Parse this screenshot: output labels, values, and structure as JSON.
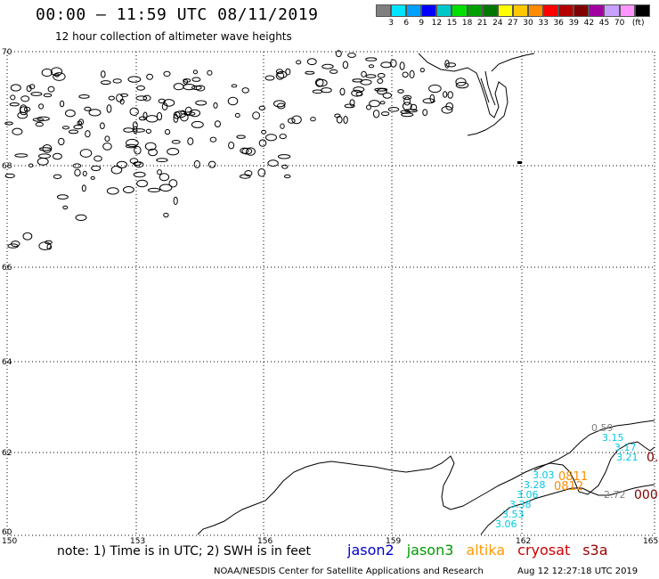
{
  "header": {
    "title": "00:00 – 11:59 UTC 08/11/2019",
    "subtitle": "12 hour collection of altimeter wave heights"
  },
  "legend": {
    "colors": [
      "#808080",
      "#00e5ff",
      "#00a0ff",
      "#0000ff",
      "#00c8c8",
      "#00e000",
      "#00a000",
      "#007800",
      "#ffff00",
      "#ffc800",
      "#ff8c00",
      "#ff0000",
      "#b40000",
      "#800000",
      "#a000a0",
      "#c8a0ff",
      "#ff96ff",
      "#000000"
    ],
    "labels": [
      "3",
      "6",
      "9",
      "12",
      "15",
      "18",
      "21",
      "24",
      "27",
      "30",
      "33",
      "36",
      "39",
      "42",
      "45",
      "70",
      "(ft)"
    ]
  },
  "axes": {
    "lat_labels": [
      "70",
      "68",
      "66",
      "64",
      "62",
      "60"
    ],
    "lon_labels": [
      "150",
      "153",
      "156",
      "159",
      "162",
      "165"
    ]
  },
  "observations": [
    {
      "text": "0.59",
      "color": "#808080"
    },
    {
      "text": "3.15",
      "color": "#00c8e6"
    },
    {
      "text": "3.17",
      "color": "#00c8e6"
    },
    {
      "text": "3.21",
      "color": "#00c8e6"
    },
    {
      "text": "0.9",
      "color": "#800000"
    },
    {
      "text": "3.03",
      "color": "#00c8e6"
    },
    {
      "text": "3.28",
      "color": "#00c8e6"
    },
    {
      "text": "0811",
      "color": "#ff8c00"
    },
    {
      "text": "0812",
      "color": "#ff8c00"
    },
    {
      "text": "3.06",
      "color": "#00c8e6"
    },
    {
      "text": "2.72",
      "color": "#808080"
    },
    {
      "text": "000",
      "color": "#800000"
    },
    {
      "text": "3.38",
      "color": "#00c8e6"
    },
    {
      "text": "3.53",
      "color": "#00c8e6"
    },
    {
      "text": "3.06",
      "color": "#00c8e6"
    }
  ],
  "footer": {
    "note": "note: 1) Time is in UTC; 2) SWH is in feet",
    "satellites": [
      {
        "name": "jason2",
        "color": "#0000cc"
      },
      {
        "name": "jason3",
        "color": "#009900"
      },
      {
        "name": "altika",
        "color": "#ff9900"
      },
      {
        "name": "cryosat",
        "color": "#cc0000"
      },
      {
        "name": "s3a",
        "color": "#990000"
      }
    ],
    "credit": "NOAA/NESDIS Center for Satellite Applications and Research",
    "timestamp": "Aug 12 12:27:18 UTC 2019"
  }
}
